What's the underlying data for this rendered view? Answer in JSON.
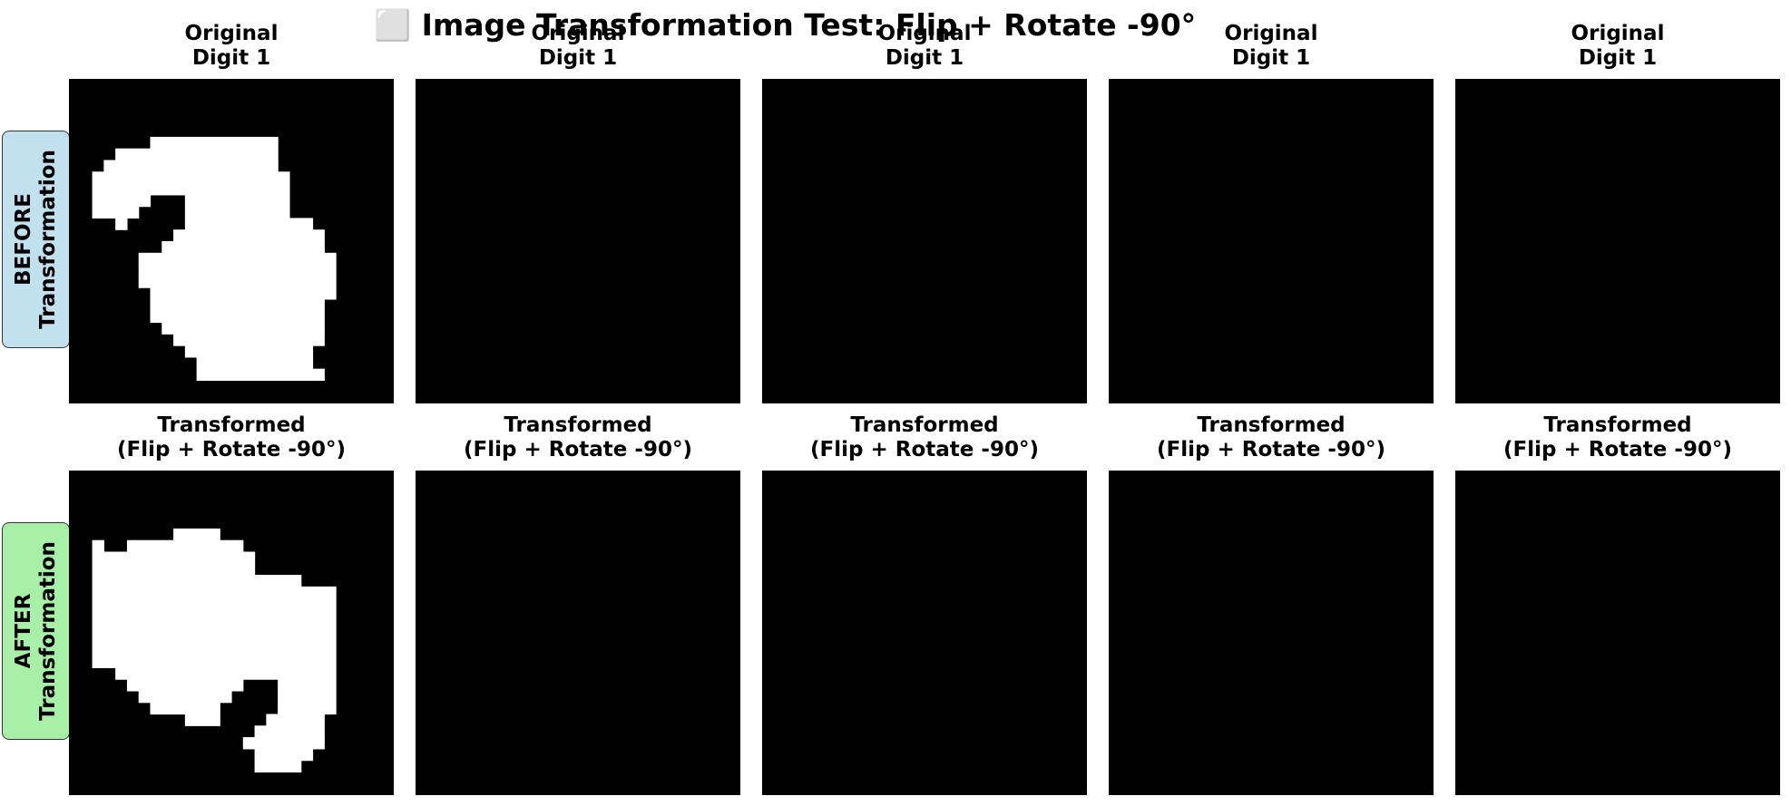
{
  "title": "⬜ Image Transformation Test: Flip + Rotate -90°",
  "rows": [
    {
      "label_line1": "BEFORE",
      "label_line2": "Transformation",
      "badge_color": "#c2e1ee",
      "caption_line1": "Original",
      "caption_line2": "Digit 1"
    },
    {
      "label_line1": "AFTER",
      "label_line2": "Transformation",
      "badge_color": "#a8f0a8",
      "caption_line1": "Transformed",
      "caption_line2": "(Flip + Rotate -90°)"
    }
  ],
  "digit_grids": [
    [
      "............................",
      "............................",
      "............................",
      "............................",
      "............................",
      ".......11111111111..........",
      "....11111111111111..........",
      "...111111111111111..........",
      "..11111111111111111.........",
      "..11111111111111111.........",
      "..11111...111111111.........",
      "..1111....111111111.........",
      "....1.....11111111111.......",
      ".........1111111111111......",
      "........11111111111111......",
      "......11111111111111111.....",
      "......11111111111111111.....",
      "......11111111111111111.....",
      ".......1111111111111111.....",
      ".......111111111111111......",
      ".......111111111111111......",
      "........11111111111111......",
      ".........1111111111111......",
      "..........11111111111.......",
      "...........1111111111.......",
      "...........11111111111......",
      "............................",
      "............................"
    ],
    [
      "............................",
      "............................",
      "............................",
      "............................",
      "............................",
      "............................",
      "............................",
      "............................",
      "............................",
      "............................",
      "............................",
      "............................",
      "............................",
      "............................",
      "............................",
      "............................",
      "............................",
      "............................",
      "............................",
      "............................",
      "............................",
      "............................",
      "............................",
      "............................",
      "............................",
      "............................",
      "............................",
      "............................"
    ],
    [
      "............................",
      "............................",
      "............................",
      "............................",
      "............................",
      "............................",
      "............................",
      "............................",
      "............................",
      "............................",
      "............................",
      "............................",
      "............................",
      "............................",
      "............................",
      "............................",
      "............................",
      "............................",
      "............................",
      "............................",
      "............................",
      "............................",
      "............................",
      "............................",
      "............................",
      "............................",
      "............................",
      "............................"
    ],
    [
      "............................",
      "............................",
      "............................",
      "............................",
      "............................",
      "............................",
      "............................",
      "............................",
      "............................",
      "............................",
      "............................",
      "............................",
      "............................",
      "............................",
      "............................",
      "............................",
      "............................",
      "............................",
      "............................",
      "............................",
      "............................",
      "............................",
      "............................",
      "............................",
      "............................",
      "............................",
      "............................",
      "............................"
    ],
    [
      "............................",
      "............................",
      "............................",
      "............................",
      "............................",
      "............................",
      "............................",
      "............................",
      "............................",
      "............................",
      "............................",
      "............................",
      "............................",
      "............................",
      "............................",
      "............................",
      "............................",
      "............................",
      "............................",
      "............................",
      "............................",
      "............................",
      "............................",
      "............................",
      "............................",
      "............................",
      "............................",
      "............................"
    ]
  ]
}
